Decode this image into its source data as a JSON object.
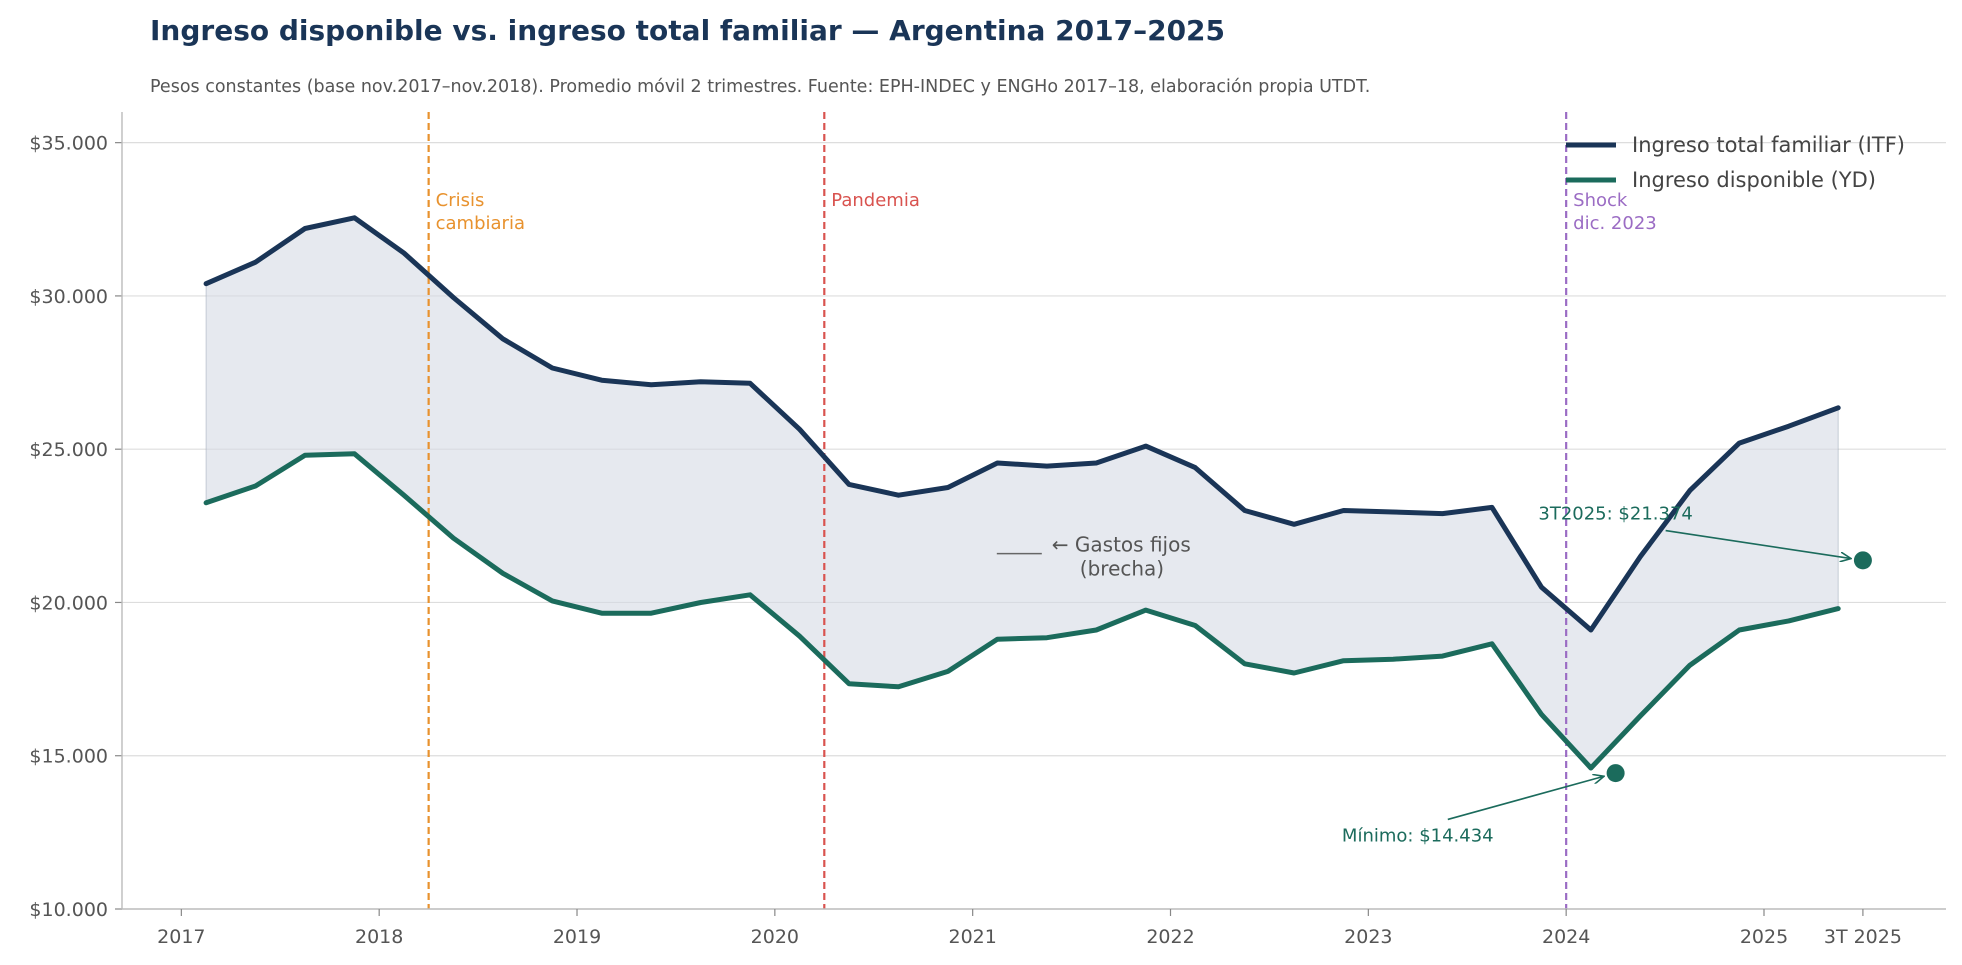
{
  "title": "Ingreso disponible vs. ingreso total familiar — Argentina 2017–2025",
  "subtitle": "Pesos constantes (base nov.2017–nov.2018). Promedio móvil 2 trimestres. Fuente: EPH-INDEC y ENGHo 2017–18, elaboración propia UTDT.",
  "colors": {
    "itf": "#1a3557",
    "yd": "#1b6b5c",
    "fill": "#d5dbe4",
    "crisis": "#e8922e",
    "pandemia": "#d9534f",
    "shock": "#9b6cc4"
  },
  "chart_data": {
    "type": "line",
    "x": [
      2017.125,
      2017.375,
      2017.625,
      2017.875,
      2018.125,
      2018.375,
      2018.625,
      2018.875,
      2019.125,
      2019.375,
      2019.625,
      2019.875,
      2020.125,
      2020.375,
      2020.625,
      2020.875,
      2021.125,
      2021.375,
      2021.625,
      2021.875,
      2022.125,
      2022.375,
      2022.625,
      2022.875,
      2023.125,
      2023.375,
      2023.625,
      2023.875,
      2024.125,
      2024.375,
      2024.625,
      2024.875,
      2025.125,
      2025.375
    ],
    "series": [
      {
        "name": "Ingreso total familiar (ITF)",
        "values": [
          30400,
          31100,
          32200,
          32550,
          31400,
          29950,
          28600,
          27650,
          27250,
          27100,
          27200,
          27150,
          25650,
          23850,
          23500,
          23750,
          24550,
          24450,
          24550,
          25100,
          24400,
          23000,
          22550,
          23000,
          22950,
          22900,
          23100,
          20500,
          19100,
          21500,
          23650,
          25200,
          25750,
          26350
        ]
      },
      {
        "name": "Ingreso disponible (YD)",
        "values": [
          23250,
          23800,
          24800,
          24850,
          23500,
          22100,
          20950,
          20050,
          19650,
          19650,
          20000,
          20250,
          18900,
          17350,
          17250,
          17750,
          18800,
          18850,
          19100,
          19750,
          19250,
          18000,
          17700,
          18100,
          18150,
          18250,
          18650,
          16350,
          14600,
          16300,
          17950,
          19100,
          19400,
          19800
        ]
      }
    ],
    "x_ticks": [
      {
        "value": 2017,
        "label": "2017"
      },
      {
        "value": 2018,
        "label": "2018"
      },
      {
        "value": 2019,
        "label": "2019"
      },
      {
        "value": 2020,
        "label": "2020"
      },
      {
        "value": 2021,
        "label": "2021"
      },
      {
        "value": 2022,
        "label": "2022"
      },
      {
        "value": 2023,
        "label": "2023"
      },
      {
        "value": 2024,
        "label": "2024"
      },
      {
        "value": 2025,
        "label": "2025"
      },
      {
        "value": 2025.5,
        "label": "3T 2025"
      }
    ],
    "y_ticks": [
      {
        "value": 10000,
        "label": "$10.000"
      },
      {
        "value": 15000,
        "label": "$15.000"
      },
      {
        "value": 20000,
        "label": "$20.000"
      },
      {
        "value": 25000,
        "label": "$25.000"
      },
      {
        "value": 30000,
        "label": "$30.000"
      },
      {
        "value": 35000,
        "label": "$35.000"
      }
    ],
    "xlim": [
      2016.7,
      2025.92
    ],
    "ylim": [
      10000,
      36000
    ],
    "grid": "horizontal",
    "legend_position": "top-right",
    "events": [
      {
        "x": 2018.25,
        "lines": [
          "Crisis",
          "cambiaria"
        ],
        "color_key": "crisis"
      },
      {
        "x": 2020.25,
        "lines": [
          "Pandemia"
        ],
        "color_key": "pandemia"
      },
      {
        "x": 2024.0,
        "lines": [
          "Shock",
          "dic. 2023"
        ],
        "color_key": "shock"
      }
    ],
    "points": [
      {
        "x": 2025.5,
        "y": 21374,
        "label": "3T2025: $21.374",
        "label_x": 2024.25,
        "label_y": 22900
      },
      {
        "x": 2024.25,
        "y": 14434,
        "label": "Mínimo: $14.434",
        "label_x": 2023.25,
        "label_y": 12400
      }
    ],
    "gap_label": {
      "lines": [
        "← Gastos fijos",
        "(brecha)"
      ],
      "x": 2021.4,
      "y": 22050
    }
  }
}
